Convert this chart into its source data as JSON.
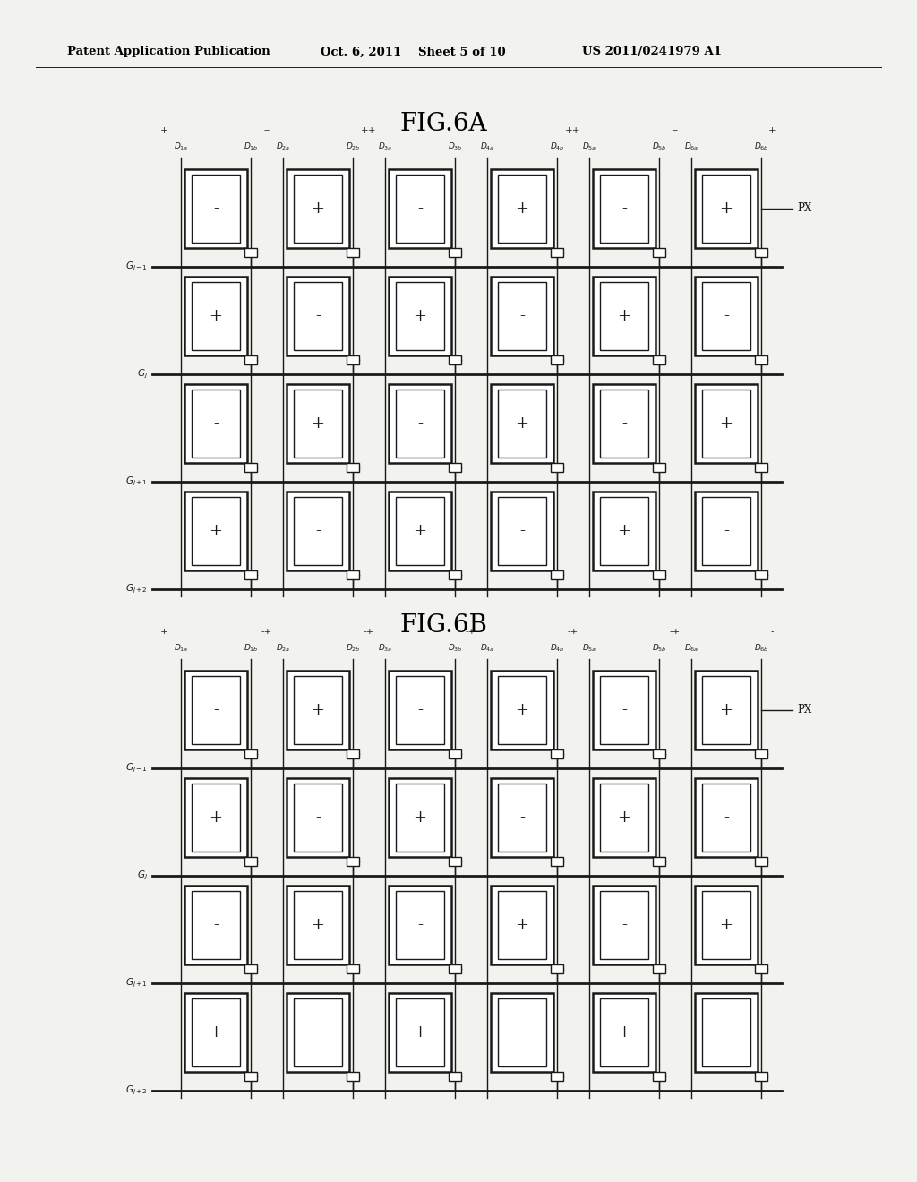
{
  "bg_color": "#f2f2ee",
  "header_text": "Patent Application Publication",
  "header_date": "Oct. 6, 2011",
  "header_sheet": "Sheet 5 of 10",
  "header_patent": "US 2011/0241979 A1",
  "fig6a_title": "FIG.6A",
  "fig6b_title": "FIG.6B",
  "polarity_6a": [
    "+",
    "--",
    "++",
    "--",
    "++",
    "--",
    "+"
  ],
  "polarity_6b": [
    "+",
    "-+",
    "-+",
    "-+",
    "-+",
    "-+",
    "-"
  ],
  "row_labels": [
    "G_{j-1}",
    "G_j",
    "G_{j+1}",
    "G_{j+2}"
  ],
  "signs_6a": [
    [
      "-",
      "+",
      "-",
      "+",
      "-",
      "+"
    ],
    [
      "+",
      "-",
      "+",
      "-",
      "+",
      "-"
    ],
    [
      "-",
      "+",
      "-",
      "+",
      "-",
      "+"
    ],
    [
      "+",
      "-",
      "+",
      "-",
      "+",
      "-"
    ]
  ],
  "signs_6b": [
    [
      "-",
      "+",
      "-",
      "+",
      "-",
      "+"
    ],
    [
      "+",
      "-",
      "+",
      "-",
      "+",
      "-"
    ],
    [
      "-",
      "+",
      "-",
      "+",
      "-",
      "+"
    ],
    [
      "+",
      "-",
      "+",
      "-",
      "+",
      "-"
    ]
  ],
  "px_label": "PX"
}
